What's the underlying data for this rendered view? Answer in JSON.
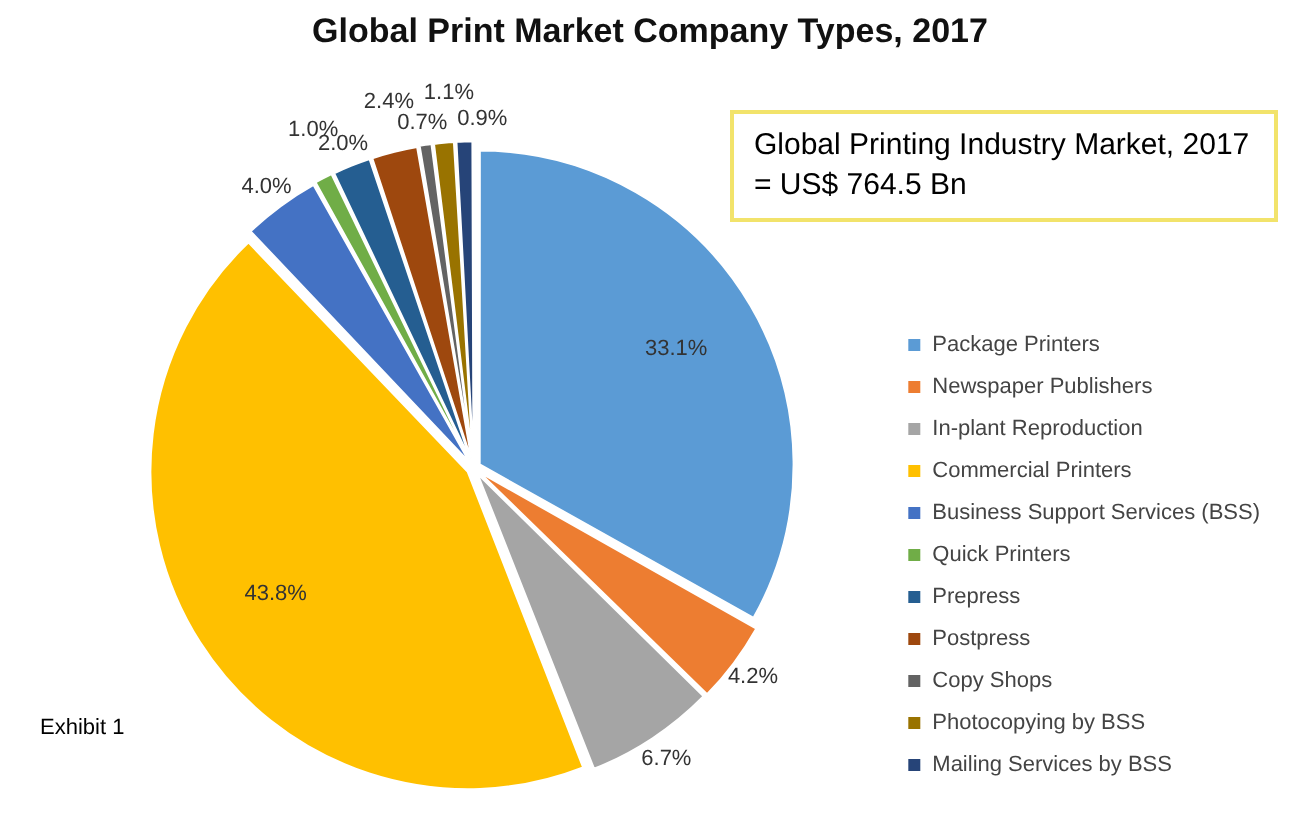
{
  "chart_data": {
    "type": "pie",
    "title": "Global Print Market Company Types, 2017",
    "categories": [
      "Package Printers",
      "Newspaper Publishers",
      "In-plant Reproduction",
      "Commercial Printers",
      "Business Support Services (BSS)",
      "Quick Printers",
      "Prepress",
      "Postpress",
      "Copy Shops",
      "Photocopying by BSS",
      "Mailing Services by BSS"
    ],
    "values": [
      33.1,
      4.2,
      6.7,
      43.8,
      4.0,
      1.0,
      2.0,
      2.4,
      0.7,
      1.1,
      0.9
    ],
    "value_labels": [
      "33.1%",
      "4.2%",
      "6.7%",
      "43.8%",
      "4.0%",
      "1.0%",
      "2.0%",
      "2.4%",
      "0.7%",
      "1.1%",
      "0.9%"
    ],
    "colors": [
      "#5b9bd5",
      "#ed7d31",
      "#a5a5a5",
      "#ffc000",
      "#4472c4",
      "#70ad47",
      "#255e91",
      "#9e480e",
      "#636363",
      "#997300",
      "#264478"
    ],
    "legend": "right",
    "annotations": [
      "Global Printing Industry Market, 2017\n= US$ 764.5 Bn",
      "Exhibit 1"
    ]
  }
}
